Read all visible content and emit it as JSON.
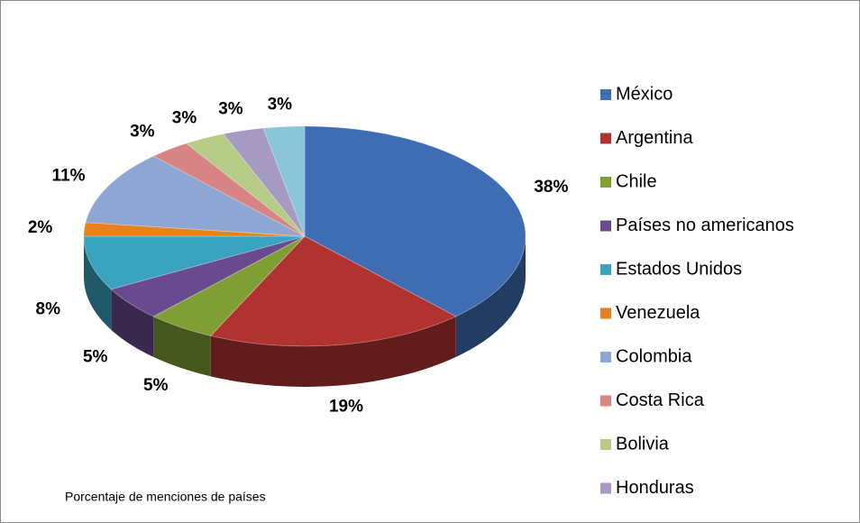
{
  "chart_data": {
    "type": "pie3d",
    "caption": "Porcentaje de menciones de países",
    "categories": [
      "México",
      "Argentina",
      "Chile",
      "Países no americanos",
      "Estados Unidos",
      "Venezuela",
      "Colombia",
      "Costa Rica",
      "Bolivia",
      "Honduras",
      null
    ],
    "values": [
      38,
      19,
      5,
      5,
      8,
      2,
      11,
      3,
      3,
      3,
      3
    ],
    "value_labels": [
      "38%",
      "19%",
      "5%",
      "5%",
      "8%",
      "2%",
      "11%",
      "3%",
      "3%",
      "3%",
      "3%"
    ],
    "colors": [
      "#3f6db3",
      "#b03331",
      "#7f9f35",
      "#6a4a8e",
      "#3aa3c0",
      "#e8801f",
      "#8ea6d4",
      "#d88484",
      "#b4cc86",
      "#a699c2",
      "#8ac5d9"
    ],
    "legend": "right"
  }
}
